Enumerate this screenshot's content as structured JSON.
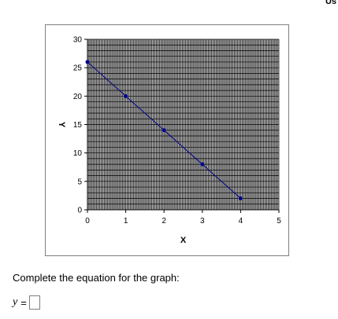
{
  "corner_text": "Us",
  "chart_data": {
    "type": "line",
    "x": [
      0,
      1,
      2,
      3,
      4
    ],
    "series": [
      {
        "values": [
          26,
          20,
          14,
          8,
          2
        ],
        "color": "#00008b"
      }
    ],
    "xlabel": "X",
    "ylabel": "Y",
    "xlim": [
      0,
      5
    ],
    "ylim": [
      0,
      30
    ],
    "xticks": [
      "0",
      "1",
      "2",
      "3",
      "4",
      "5"
    ],
    "yticks": [
      "0",
      "5",
      "10",
      "15",
      "20",
      "25",
      "30"
    ],
    "grid": true,
    "plot_background": "#c0c0c0",
    "grid_color": "#000000"
  },
  "question": {
    "prompt": "Complete the equation for the graph:",
    "answer_label": "y",
    "equals": "=",
    "answer_value": ""
  }
}
